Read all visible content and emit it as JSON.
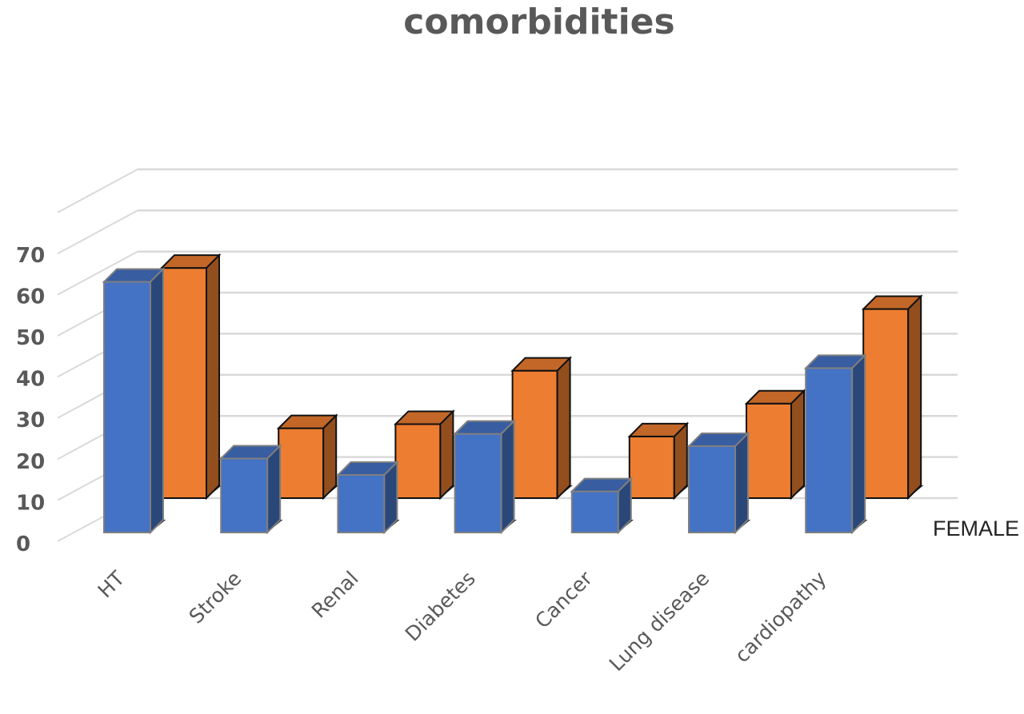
{
  "chart_data": {
    "type": "bar",
    "title": "comorbidities",
    "categories": [
      "HT",
      "Stroke",
      "Renal",
      "Diabetes",
      "Cancer",
      "Lung disease",
      "cardiopathy"
    ],
    "yticks": [
      "0",
      "10",
      "20",
      "30",
      "40",
      "50",
      "60",
      "70"
    ],
    "ylim": [
      0,
      70
    ],
    "series": [
      {
        "name": "",
        "color": "#4472C4",
        "values": [
          61,
          18,
          14,
          24,
          10,
          21,
          40
        ]
      },
      {
        "name": "FEMALE",
        "color": "#ED7D31",
        "values": [
          56,
          17,
          18,
          31,
          15,
          23,
          46
        ]
      }
    ],
    "grid": true,
    "style": "3d-column"
  }
}
